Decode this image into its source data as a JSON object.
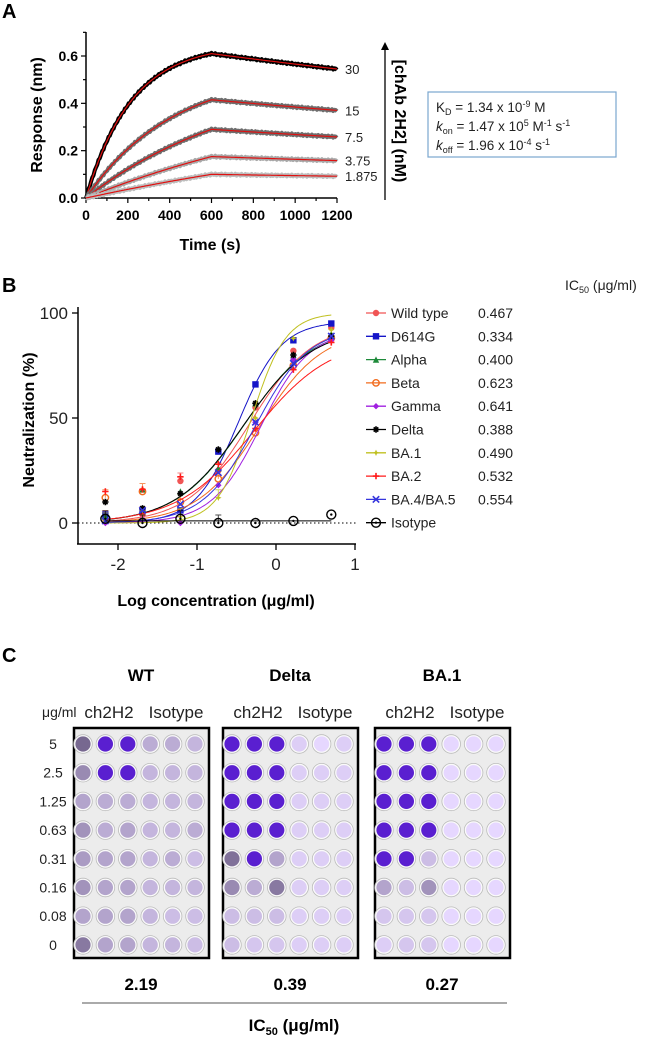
{
  "chart_data": [
    {
      "panel": "A",
      "type": "line",
      "xlabel": "Time (s)",
      "ylabel": "Response (nm)",
      "xlim": [
        0,
        1200
      ],
      "ylim": [
        0,
        0.7
      ],
      "xticks": [
        0,
        200,
        400,
        600,
        800,
        1000,
        1200
      ],
      "yticks": [
        "0.0",
        "0.2",
        "0.4",
        "0.6"
      ],
      "association_end_s": 600,
      "concentration_axis_label": "[chAb 2H2] (nM)",
      "series": [
        {
          "name": "30",
          "conc_nM": 30,
          "peak": 0.61,
          "end": 0.545,
          "color": "#000000"
        },
        {
          "name": "15",
          "conc_nM": 15,
          "peak": 0.415,
          "end": 0.37,
          "color": "#6e6e6e"
        },
        {
          "name": "7.5",
          "conc_nM": 7.5,
          "peak": 0.29,
          "end": 0.258,
          "color": "#6e6e6e"
        },
        {
          "name": "3.75",
          "conc_nM": 3.75,
          "peak": 0.175,
          "end": 0.158,
          "color": "#a8a8a8"
        },
        {
          "name": "1.875",
          "conc_nM": 1.875,
          "peak": 0.1,
          "end": 0.092,
          "color": "#bdbdbd"
        }
      ],
      "fit_color": "#e01010",
      "kinetics": {
        "kd": {
          "sym": "K",
          "sub": "D",
          "text": " = 1.34 x 10",
          "sup": "-9",
          "unit": " M"
        },
        "kon": {
          "sym": "k",
          "sub": "on",
          "text": " = 1.47 x 10",
          "sup": "5",
          "unit1": " M",
          "sup1": "-1",
          "unit2": " s",
          "sup2": "-1"
        },
        "koff": {
          "sym": "k",
          "sub": "off",
          "text": " = 1.96 x 10",
          "sup": "-4",
          "unit1": " s",
          "sup1": "-1"
        }
      }
    },
    {
      "panel": "B",
      "type": "line",
      "xlabel": "Log concentration (μg/ml)",
      "ylabel": "Neutralization (%)",
      "xlim": [
        -2.5,
        1
      ],
      "ylim": [
        -10,
        100
      ],
      "xticks": [
        "-2",
        "-1",
        "0",
        "1"
      ],
      "yticks": [
        "0",
        "50",
        "100"
      ],
      "x": [
        -2.16,
        -1.69,
        -1.21,
        -0.73,
        -0.26,
        0.22,
        0.7
      ],
      "legend_header": {
        "main": "IC",
        "sub": "50",
        "unit": " (μg/ml)"
      },
      "legend_position": "right",
      "series": [
        {
          "name": "Wild type",
          "ic50": "0.467",
          "color": "#f05555",
          "marker": "circle",
          "top": 95,
          "hill": 1.1,
          "values": [
            2,
            4,
            20,
            25,
            55,
            82,
            93
          ]
        },
        {
          "name": "D614G",
          "ic50": "0.334",
          "color": "#1515c8",
          "marker": "square",
          "top": 96,
          "hill": 1.6,
          "values": [
            4,
            6,
            6,
            34,
            66,
            87,
            95
          ]
        },
        {
          "name": "Alpha",
          "ic50": "0.400",
          "color": "#1e8a3a",
          "marker": "triangle",
          "top": 94,
          "hill": 1.0,
          "values": [
            3,
            16,
            15,
            26,
            57,
            80,
            90
          ]
        },
        {
          "name": "Beta",
          "ic50": "0.623",
          "color": "#f26b1d",
          "marker": "open-circle",
          "top": 92,
          "hill": 1.1,
          "values": [
            12,
            15,
            10,
            21,
            43,
            75,
            88
          ]
        },
        {
          "name": "Gamma",
          "ic50": "0.641",
          "color": "#a020e0",
          "marker": "diamond",
          "top": 92,
          "hill": 1.4,
          "values": [
            0,
            2,
            0,
            18,
            48,
            78,
            87
          ]
        },
        {
          "name": "Delta",
          "ic50": "0.388",
          "color": "#000000",
          "marker": "asterisk",
          "top": 93,
          "hill": 1.0,
          "values": [
            10,
            7,
            14,
            35,
            57,
            80,
            89
          ]
        },
        {
          "name": "BA.1",
          "ic50": "0.490",
          "color": "#c0c020",
          "marker": "star",
          "top": 100,
          "hill": 2.0,
          "values": [
            1,
            2,
            3,
            12,
            50,
            88,
            92
          ]
        },
        {
          "name": "BA.2",
          "ic50": "0.532",
          "color": "#ff1a1a",
          "marker": "plus",
          "top": 88,
          "hill": 0.9,
          "values": [
            15,
            16,
            22,
            28,
            45,
            73,
            86
          ]
        },
        {
          "name": "BA.4/BA.5",
          "ic50": "0.554",
          "color": "#3535dd",
          "marker": "cross",
          "top": 93,
          "hill": 1.3,
          "values": [
            1,
            6,
            9,
            24,
            48,
            76,
            89
          ]
        },
        {
          "name": "Isotype",
          "ic50": "",
          "color": "#000000",
          "marker": "dot-circle",
          "values": [
            2,
            0,
            2,
            0,
            0,
            1,
            4
          ]
        }
      ]
    }
  ],
  "panels": {
    "a": "A",
    "b": "B",
    "c": "C"
  },
  "plaque": {
    "unit_label": "μg/ml",
    "concentrations": [
      "5",
      "2.5",
      "1.25",
      "0.63",
      "0.31",
      "0.16",
      "0.08",
      "0"
    ],
    "column_groups": [
      "ch2H2",
      "Isotype"
    ],
    "ic50_label": {
      "main": "IC",
      "sub": "50",
      "unit": " (μg/ml)"
    },
    "plates": [
      {
        "title": "WT",
        "ic50": "2.19",
        "stain": [
          [
            0.8,
            1,
            1,
            0.4,
            0.4,
            0.35
          ],
          [
            0.6,
            1,
            1,
            0.35,
            0.35,
            0.35
          ],
          [
            0.45,
            0.4,
            0.4,
            0.35,
            0.35,
            0.35
          ],
          [
            0.55,
            0.4,
            0.45,
            0.35,
            0.35,
            0.4
          ],
          [
            0.5,
            0.45,
            0.45,
            0.35,
            0.4,
            0.3
          ],
          [
            0.55,
            0.45,
            0.45,
            0.35,
            0.35,
            0.35
          ],
          [
            0.45,
            0.45,
            0.45,
            0.35,
            0.3,
            0.3
          ],
          [
            0.7,
            0.45,
            0.45,
            0.35,
            0.35,
            0.3
          ]
        ]
      },
      {
        "title": "Delta",
        "ic50": "0.39",
        "stain": [
          [
            1,
            1,
            1,
            0.2,
            0.15,
            0.2
          ],
          [
            1,
            1,
            1,
            0.2,
            0.2,
            0.2
          ],
          [
            1,
            1,
            1,
            0.2,
            0.2,
            0.2
          ],
          [
            1,
            1,
            1,
            0.2,
            0.2,
            0.2
          ],
          [
            0.75,
            1,
            0.45,
            0.2,
            0.2,
            0.2
          ],
          [
            0.6,
            0.4,
            0.7,
            0.2,
            0.2,
            0.2
          ],
          [
            0.3,
            0.3,
            0.3,
            0.2,
            0.2,
            0.2
          ],
          [
            0.3,
            0.25,
            0.25,
            0.2,
            0.2,
            0.2
          ]
        ]
      },
      {
        "title": "BA.1",
        "ic50": "0.27",
        "stain": [
          [
            1,
            1,
            1,
            0.15,
            0.15,
            0.15
          ],
          [
            1,
            1,
            1,
            0.15,
            0.15,
            0.15
          ],
          [
            1,
            1,
            1,
            0.15,
            0.15,
            0.15
          ],
          [
            1,
            1,
            0.9,
            0.15,
            0.15,
            0.15
          ],
          [
            1,
            1,
            0.3,
            0.15,
            0.15,
            0.15
          ],
          [
            0.45,
            0.3,
            0.55,
            0.15,
            0.15,
            0.15
          ],
          [
            0.25,
            0.25,
            0.25,
            0.15,
            0.15,
            0.15
          ],
          [
            0.2,
            0.25,
            0.25,
            0.15,
            0.15,
            0.15
          ]
        ]
      }
    ]
  }
}
